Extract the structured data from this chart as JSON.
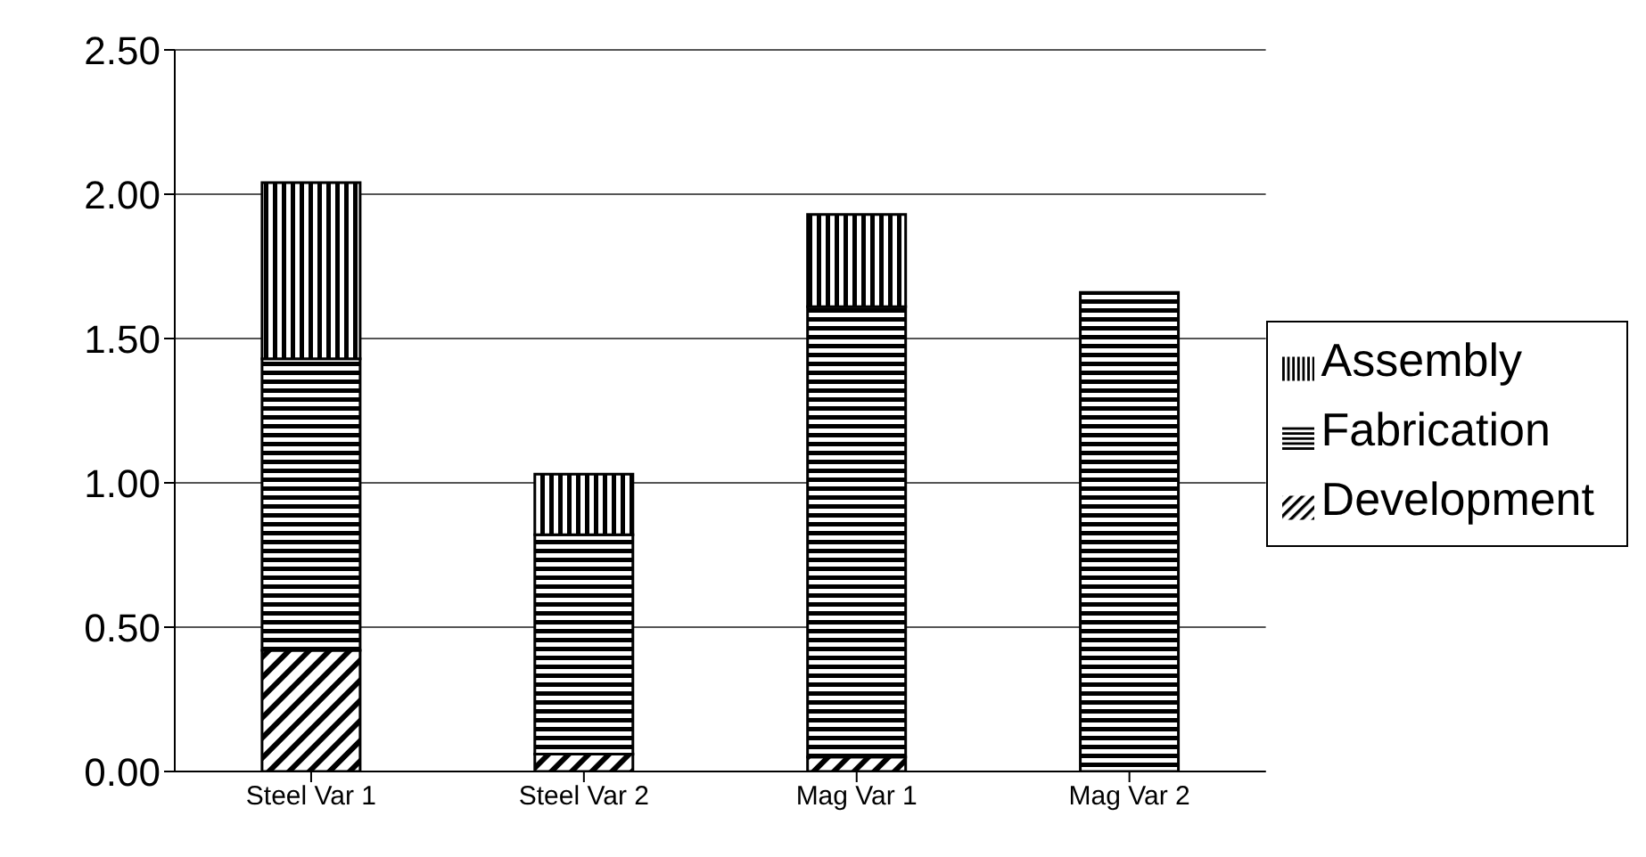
{
  "chart_data": {
    "type": "bar",
    "stacked": true,
    "categories": [
      "Steel Var 1",
      "Steel Var 2",
      "Mag Var 1",
      "Mag Var 2"
    ],
    "series": [
      {
        "name": "Development",
        "color": "#000000",
        "values": [
          0.42,
          0.06,
          0.05,
          0
        ]
      },
      {
        "name": "Fabrication",
        "color": "#000000",
        "values": [
          1.01,
          0.76,
          1.56,
          1.66
        ]
      },
      {
        "name": "Assembly",
        "color": "#000000",
        "values": [
          0.61,
          0.21,
          0.32,
          0
        ]
      }
    ],
    "ylim": [
      0,
      2.5
    ],
    "yticks": [
      {
        "value": 0,
        "label": "0.00"
      },
      {
        "value": 0.5,
        "label": "0.50"
      },
      {
        "value": 1,
        "label": "1.00"
      },
      {
        "value": 1.5,
        "label": "1.50"
      },
      {
        "value": 2,
        "label": "2.00"
      },
      {
        "value": 2.5,
        "label": "2.50"
      }
    ],
    "grid": "y",
    "legend": "right"
  }
}
